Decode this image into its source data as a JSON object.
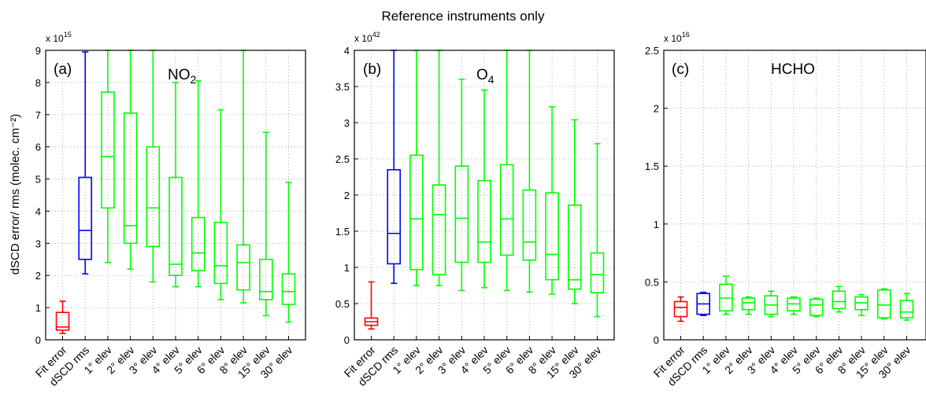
{
  "figure_title": "Reference instruments only",
  "y_axis_label": "dSCD error/ rms (molec. cm⁻²)",
  "series_colors": {
    "fit_error": "#ff0000",
    "dscd_rms": "#0000ff",
    "elev": "#00ff00"
  },
  "chart_data": [
    {
      "type": "box",
      "panel": "(a)",
      "species": "NO",
      "species_sub": "2",
      "multiplier": "x 10",
      "multiplier_exp": "15",
      "ylim": [
        0,
        9
      ],
      "yticks": [
        0,
        1,
        2,
        3,
        4,
        5,
        6,
        7,
        8,
        9
      ],
      "grid": true,
      "categories": [
        "Fit error",
        "dSCD rms",
        "1° elev",
        "2° elev",
        "3° elev",
        "4° elev",
        "5° elev",
        "6° elev",
        "8° elev",
        "15° elev",
        "30° elev"
      ],
      "boxes": [
        {
          "min": 0.2,
          "q1": 0.3,
          "median": 0.4,
          "q3": 0.85,
          "max": 1.2
        },
        {
          "min": 2.05,
          "q1": 2.5,
          "median": 3.4,
          "q3": 5.05,
          "max": 8.95
        },
        {
          "min": 2.4,
          "q1": 4.1,
          "median": 5.7,
          "q3": 7.7,
          "max": 9.0
        },
        {
          "min": 2.2,
          "q1": 3.0,
          "median": 3.55,
          "q3": 7.05,
          "max": 9.0
        },
        {
          "min": 1.8,
          "q1": 2.9,
          "median": 4.1,
          "q3": 6.0,
          "max": 9.0
        },
        {
          "min": 1.65,
          "q1": 2.0,
          "median": 2.35,
          "q3": 5.05,
          "max": 8.0
        },
        {
          "min": 1.65,
          "q1": 2.15,
          "median": 2.7,
          "q3": 3.8,
          "max": 8.05
        },
        {
          "min": 1.25,
          "q1": 1.75,
          "median": 2.3,
          "q3": 3.65,
          "max": 7.15
        },
        {
          "min": 1.15,
          "q1": 1.55,
          "median": 2.4,
          "q3": 2.95,
          "max": 9.0
        },
        {
          "min": 0.75,
          "q1": 1.25,
          "median": 1.5,
          "q3": 2.5,
          "max": 6.45
        },
        {
          "min": 0.55,
          "q1": 1.1,
          "median": 1.5,
          "q3": 2.05,
          "max": 4.9
        }
      ]
    },
    {
      "type": "box",
      "panel": "(b)",
      "species": "O",
      "species_sub": "4",
      "multiplier": "x 10",
      "multiplier_exp": "42",
      "ylim": [
        0,
        4
      ],
      "yticks": [
        0,
        0.5,
        1,
        1.5,
        2,
        2.5,
        3,
        3.5,
        4
      ],
      "grid": true,
      "categories": [
        "Fit error",
        "dSCD rms",
        "1° elev",
        "2° elev",
        "3° elev",
        "4° elev",
        "5° elev",
        "6° elev",
        "8° elev",
        "15° elev",
        "30° elev"
      ],
      "boxes": [
        {
          "min": 0.15,
          "q1": 0.2,
          "median": 0.25,
          "q3": 0.3,
          "max": 0.8
        },
        {
          "min": 0.78,
          "q1": 1.05,
          "median": 1.47,
          "q3": 2.35,
          "max": 4.0
        },
        {
          "min": 0.75,
          "q1": 0.97,
          "median": 1.67,
          "q3": 2.55,
          "max": 4.0
        },
        {
          "min": 0.75,
          "q1": 0.9,
          "median": 1.73,
          "q3": 2.14,
          "max": 4.0
        },
        {
          "min": 0.68,
          "q1": 1.07,
          "median": 1.68,
          "q3": 2.4,
          "max": 3.6
        },
        {
          "min": 0.72,
          "q1": 1.07,
          "median": 1.35,
          "q3": 2.2,
          "max": 3.45
        },
        {
          "min": 0.68,
          "q1": 1.17,
          "median": 1.67,
          "q3": 2.42,
          "max": 4.0
        },
        {
          "min": 0.66,
          "q1": 1.1,
          "median": 1.35,
          "q3": 2.07,
          "max": 4.0
        },
        {
          "min": 0.63,
          "q1": 0.83,
          "median": 1.18,
          "q3": 2.03,
          "max": 3.22
        },
        {
          "min": 0.5,
          "q1": 0.7,
          "median": 0.83,
          "q3": 1.86,
          "max": 3.04
        },
        {
          "min": 0.32,
          "q1": 0.65,
          "median": 0.9,
          "q3": 1.2,
          "max": 2.71
        }
      ]
    },
    {
      "type": "box",
      "panel": "(c)",
      "species": "HCHO",
      "species_sub": "",
      "multiplier": "x 10",
      "multiplier_exp": "16",
      "ylim": [
        0,
        2.5
      ],
      "yticks": [
        0,
        0.5,
        1,
        1.5,
        2,
        2.5
      ],
      "grid": true,
      "categories": [
        "Fit error",
        "dSCD rms",
        "1° elev",
        "2° elev",
        "3° elev",
        "4° elev",
        "5° elev",
        "6° elev",
        "8° elev",
        "15° elev",
        "30° elev"
      ],
      "boxes": [
        {
          "min": 0.16,
          "q1": 0.2,
          "median": 0.28,
          "q3": 0.33,
          "max": 0.37
        },
        {
          "min": 0.21,
          "q1": 0.22,
          "median": 0.31,
          "q3": 0.4,
          "max": 0.41
        },
        {
          "min": 0.22,
          "q1": 0.25,
          "median": 0.36,
          "q3": 0.48,
          "max": 0.55
        },
        {
          "min": 0.22,
          "q1": 0.26,
          "median": 0.32,
          "q3": 0.36,
          "max": 0.37
        },
        {
          "min": 0.2,
          "q1": 0.22,
          "median": 0.3,
          "q3": 0.38,
          "max": 0.42
        },
        {
          "min": 0.22,
          "q1": 0.25,
          "median": 0.31,
          "q3": 0.36,
          "max": 0.37
        },
        {
          "min": 0.2,
          "q1": 0.21,
          "median": 0.3,
          "q3": 0.35,
          "max": 0.36
        },
        {
          "min": 0.24,
          "q1": 0.27,
          "median": 0.33,
          "q3": 0.42,
          "max": 0.46
        },
        {
          "min": 0.21,
          "q1": 0.26,
          "median": 0.32,
          "q3": 0.37,
          "max": 0.39
        },
        {
          "min": 0.18,
          "q1": 0.19,
          "median": 0.3,
          "q3": 0.43,
          "max": 0.44
        },
        {
          "min": 0.17,
          "q1": 0.19,
          "median": 0.24,
          "q3": 0.34,
          "max": 0.4
        }
      ]
    }
  ]
}
